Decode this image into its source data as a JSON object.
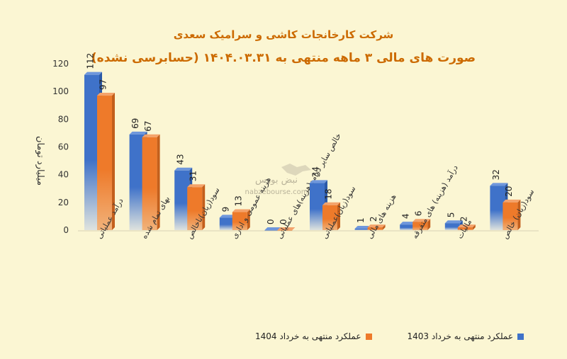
{
  "title": "شرکت کارخانجات کاشی و سرامیک سعدی",
  "subtitle": "صورت های مالی ۳ ماهه منتهی به ۱۴۰۴.۰۳.۳۱ (حسابرسی نشده)",
  "watermark": {
    "name": "نبض بورس",
    "url": "nabzebourse.com"
  },
  "chart_data": {
    "type": "bar",
    "title": "شرکت کارخانجات کاشی و سرامیک سعدی",
    "subtitle": "صورت های مالی ۳ ماهه منتهی به ۱۴۰۴.۰۳.۳۱ (حسابرسی نشده)",
    "ylabel": "میلیارد تومان",
    "xlabel": "",
    "ylim": [
      0,
      120
    ],
    "yticks": [
      0,
      20,
      40,
      60,
      80,
      100,
      120
    ],
    "grid": false,
    "legend_position": "bottom-right",
    "categories": [
      "درآمد عملیاتی",
      "بهای تمام شده",
      "سود(زیان)ناخالص",
      "هزینه عمومی و اداری",
      "خالص سایر درامد(هزینه)های عملیاتی",
      "سود(زیان)عملیاتی",
      "هزینه های مالی",
      "درآمد (هزینه) های متفرقه",
      "مالیات",
      "سود(زیان) خالص"
    ],
    "series": [
      {
        "name": "عملکرد منتهی به خرداد 1403",
        "color": "#3f72c9",
        "values": [
          112,
          69,
          43,
          9,
          0,
          34,
          1,
          4,
          5,
          32
        ]
      },
      {
        "name": "عملکرد منتهی به خرداد 1404",
        "color": "#ee7a2a",
        "values": [
          97,
          67,
          31,
          13,
          0,
          18,
          2,
          6,
          2,
          20
        ]
      }
    ]
  }
}
